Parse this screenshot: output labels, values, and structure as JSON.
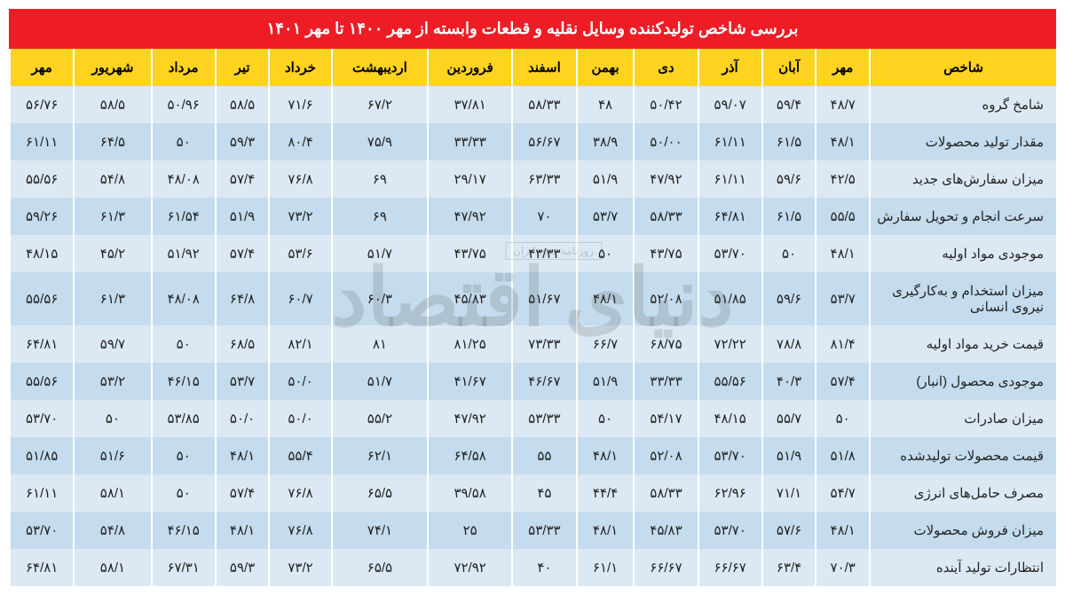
{
  "title": "بررسی شاخص تولیدکننده وسایل نقلیه و قطعات وابسته از مهر ۱۴۰۰ تا مهر ۱۴۰۱",
  "watermark": "دنیای اقتصاد",
  "watermark_sub": "روزنامه صبح ایران",
  "colors": {
    "title_bg": "#ee1c25",
    "title_fg": "#ffffff",
    "header_bg": "#ffd320",
    "header_fg": "#000000",
    "row_odd": "#dce9f4",
    "row_even": "#c4dced",
    "cell_fg": "#222222"
  },
  "fonts": {
    "title_size": 18,
    "header_size": 15,
    "cell_size": 15
  },
  "headers": [
    "شاخص",
    "مهر",
    "آبان",
    "آذر",
    "دی",
    "بهمن",
    "اسفند",
    "فروردین",
    "اردیبهشت",
    "خرداد",
    "تیر",
    "مرداد",
    "شهریور",
    "مهر"
  ],
  "rows": [
    {
      "label": "شامخ گروه",
      "values": [
        "۴۸/۷",
        "۵۹/۴",
        "۵۹/۰۷",
        "۵۰/۴۲",
        "۴۸",
        "۵۸/۳۳",
        "۳۷/۸۱",
        "۶۷/۲",
        "۷۱/۶",
        "۵۸/۵",
        "۵۰/۹۶",
        "۵۸/۵",
        "۵۶/۷۶"
      ]
    },
    {
      "label": "مقدار تولید محصولات",
      "values": [
        "۴۸/۱",
        "۶۱/۵",
        "۶۱/۱۱",
        "۵۰/۰۰",
        "۳۸/۹",
        "۵۶/۶۷",
        "۳۳/۳۳",
        "۷۵/۹",
        "۸۰/۴",
        "۵۹/۳",
        "۵۰",
        "۶۴/۵",
        "۶۱/۱۱"
      ]
    },
    {
      "label": "میزان سفارش‌های جدید",
      "values": [
        "۴۲/۵",
        "۵۹/۶",
        "۶۱/۱۱",
        "۴۷/۹۲",
        "۵۱/۹",
        "۶۳/۳۳",
        "۲۹/۱۷",
        "۶۹",
        "۷۶/۸",
        "۵۷/۴",
        "۴۸/۰۸",
        "۵۴/۸",
        "۵۵/۵۶"
      ]
    },
    {
      "label": "سرعت انجام و تحویل سفارش",
      "values": [
        "۵۵/۵",
        "۶۱/۵",
        "۶۴/۸۱",
        "۵۸/۳۳",
        "۵۳/۷",
        "۷۰",
        "۴۷/۹۲",
        "۶۹",
        "۷۳/۲",
        "۵۱/۹",
        "۶۱/۵۴",
        "۶۱/۳",
        "۵۹/۲۶"
      ]
    },
    {
      "label": "موجودی مواد اولیه",
      "values": [
        "۴۸/۱",
        "۵۰",
        "۵۳/۷۰",
        "۴۳/۷۵",
        "۵۰",
        "۴۳/۳۳",
        "۴۳/۷۵",
        "۵۱/۷",
        "۵۳/۶",
        "۵۷/۴",
        "۵۱/۹۲",
        "۴۵/۲",
        "۴۸/۱۵"
      ]
    },
    {
      "label": "میزان استخدام و به‌کارگیری نیروی انسانی",
      "values": [
        "۵۳/۷",
        "۵۹/۶",
        "۵۱/۸۵",
        "۵۲/۰۸",
        "۴۸/۱",
        "۵۱/۶۷",
        "۴۵/۸۳",
        "۶۰/۳",
        "۶۰/۷",
        "۶۴/۸",
        "۴۸/۰۸",
        "۶۱/۳",
        "۵۵/۵۶"
      ]
    },
    {
      "label": "قیمت خرید مواد اولیه",
      "values": [
        "۸۱/۴",
        "۷۸/۸",
        "۷۲/۲۲",
        "۶۸/۷۵",
        "۶۶/۷",
        "۷۳/۳۳",
        "۸۱/۲۵",
        "۸۱",
        "۸۲/۱",
        "۶۸/۵",
        "۵۰",
        "۵۹/۷",
        "۶۴/۸۱"
      ]
    },
    {
      "label": "موجودی محصول (انبار)",
      "values": [
        "۵۷/۴",
        "۴۰/۳",
        "۵۵/۵۶",
        "۳۳/۳۳",
        "۵۱/۹",
        "۴۶/۶۷",
        "۴۱/۶۷",
        "۵۱/۷",
        "۵۰/۰",
        "۵۳/۷",
        "۴۶/۱۵",
        "۵۳/۲",
        "۵۵/۵۶"
      ]
    },
    {
      "label": "میزان صادرات",
      "values": [
        "۵۰",
        "۵۵/۷",
        "۴۸/۱۵",
        "۵۴/۱۷",
        "۵۰",
        "۵۳/۳۳",
        "۴۷/۹۲",
        "۵۵/۲",
        "۵۰/۰",
        "۵۰/۰",
        "۵۳/۸۵",
        "۵۰",
        "۵۳/۷۰"
      ]
    },
    {
      "label": "قیمت محصولات تولیدشده",
      "values": [
        "۵۱/۸",
        "۵۱/۹",
        "۵۳/۷۰",
        "۵۲/۰۸",
        "۴۸/۱",
        "۵۵",
        "۶۴/۵۸",
        "۶۲/۱",
        "۵۵/۴",
        "۴۸/۱",
        "۵۰",
        "۵۱/۶",
        "۵۱/۸۵"
      ]
    },
    {
      "label": "مصرف حامل‌های انرژی",
      "values": [
        "۵۴/۷",
        "۷۱/۱",
        "۶۲/۹۶",
        "۵۸/۳۳",
        "۴۴/۴",
        "۴۵",
        "۳۹/۵۸",
        "۶۵/۵",
        "۷۶/۸",
        "۵۷/۴",
        "۵۰",
        "۵۸/۱",
        "۶۱/۱۱"
      ]
    },
    {
      "label": "میزان فروش محصولات",
      "values": [
        "۴۸/۱",
        "۵۷/۶",
        "۵۳/۷۰",
        "۴۵/۸۳",
        "۴۸/۱",
        "۵۳/۳۳",
        "۲۵",
        "۷۴/۱",
        "۷۶/۸",
        "۴۸/۱",
        "۴۶/۱۵",
        "۵۴/۸",
        "۵۳/۷۰"
      ]
    },
    {
      "label": "انتظارات تولید آینده",
      "values": [
        "۷۰/۳",
        "۶۳/۴",
        "۶۶/۶۷",
        "۶۶/۶۷",
        "۶۱/۱",
        "۴۰",
        "۷۲/۹۲",
        "۶۵/۵",
        "۷۳/۲",
        "۵۹/۳",
        "۶۷/۳۱",
        "۵۸/۱",
        "۶۴/۸۱"
      ]
    }
  ]
}
